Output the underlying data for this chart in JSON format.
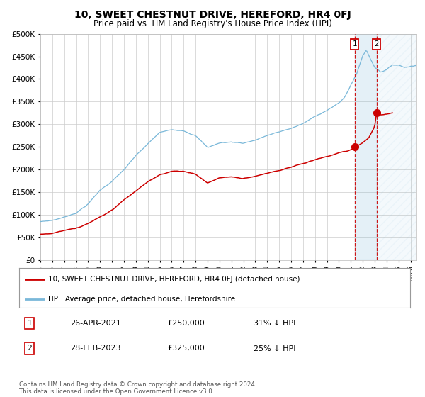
{
  "title": "10, SWEET CHESTNUT DRIVE, HEREFORD, HR4 0FJ",
  "subtitle": "Price paid vs. HM Land Registry's House Price Index (HPI)",
  "title_fontsize": 10,
  "subtitle_fontsize": 8.5,
  "hpi_color": "#7ab8d9",
  "price_color": "#cc0000",
  "marker_color": "#cc0000",
  "vline_color": "#cc0000",
  "fill_color": "#d8eaf7",
  "grid_color": "#cccccc",
  "bg_color": "#ffffff",
  "ylim": [
    0,
    500000
  ],
  "yticks": [
    0,
    50000,
    100000,
    150000,
    200000,
    250000,
    300000,
    350000,
    400000,
    450000,
    500000
  ],
  "xlim_start": 1995.0,
  "xlim_end": 2026.5,
  "xtick_years": [
    1995,
    1996,
    1997,
    1998,
    1999,
    2000,
    2001,
    2002,
    2003,
    2004,
    2005,
    2006,
    2007,
    2008,
    2009,
    2010,
    2011,
    2012,
    2013,
    2014,
    2015,
    2016,
    2017,
    2018,
    2019,
    2020,
    2021,
    2022,
    2023,
    2024,
    2025,
    2026
  ],
  "transaction1_date": 2021.32,
  "transaction1_price": 250000,
  "transaction1_label": "1",
  "transaction2_date": 2023.16,
  "transaction2_price": 325000,
  "transaction2_label": "2",
  "legend_line1": "10, SWEET CHESTNUT DRIVE, HEREFORD, HR4 0FJ (detached house)",
  "legend_line2": "HPI: Average price, detached house, Herefordshire",
  "table_row1": [
    "1",
    "26-APR-2021",
    "£250,000",
    "31% ↓ HPI"
  ],
  "table_row2": [
    "2",
    "28-FEB-2023",
    "£325,000",
    "25% ↓ HPI"
  ],
  "footer": "Contains HM Land Registry data © Crown copyright and database right 2024.\nThis data is licensed under the Open Government Licence v3.0.",
  "hatch_region_start": 2023.16,
  "hatch_region_end": 2026.5
}
